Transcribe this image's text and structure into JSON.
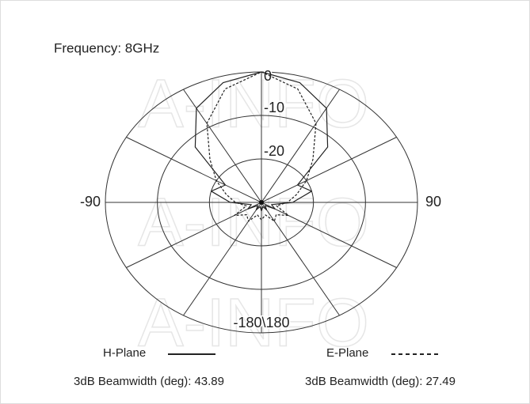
{
  "chart_data": {
    "type": "polar",
    "title": "Frequency: 8GHz",
    "watermark": "A-INFO",
    "rlim": [
      -30,
      0
    ],
    "rticks": [
      0,
      -10,
      -20
    ],
    "thetaticks": [
      0,
      30,
      60,
      90,
      120,
      150,
      180,
      -150,
      -120,
      -90,
      -60,
      -30
    ],
    "theta_labels": [
      -90,
      90,
      {
        "value": 180,
        "label": "-180\\180"
      }
    ],
    "theta": [
      -180,
      -165,
      -150,
      -135,
      -120,
      -105,
      -90,
      -75,
      -60,
      -45,
      -30,
      -15,
      0,
      15,
      30,
      45,
      60,
      75,
      90,
      105,
      120,
      135,
      150,
      165,
      180
    ],
    "beamwidth_label": "3dB Beamwidth (deg):",
    "series": [
      {
        "name": "H-Plane",
        "color": "#222222",
        "dash": "solid",
        "beamwidth": 43.89,
        "values": [
          -28,
          -29,
          -28,
          -29,
          -27,
          -28,
          -24,
          -20,
          -22,
          -12,
          -5,
          -1.5,
          0,
          -1.5,
          -5,
          -12,
          -22,
          -20,
          -24,
          -28,
          -27,
          -29,
          -28,
          -29,
          -28
        ]
      },
      {
        "name": "E-Plane",
        "color": "#222222",
        "dash": "dashed",
        "beamwidth": 27.49,
        "values": [
          -26,
          -27,
          -25,
          -26,
          -24,
          -27,
          -25,
          -23,
          -20,
          -16,
          -9,
          -3,
          0,
          -3,
          -9,
          -16,
          -20,
          -23,
          -25,
          -27,
          -24,
          -26,
          -25,
          -27,
          -26
        ]
      }
    ]
  }
}
